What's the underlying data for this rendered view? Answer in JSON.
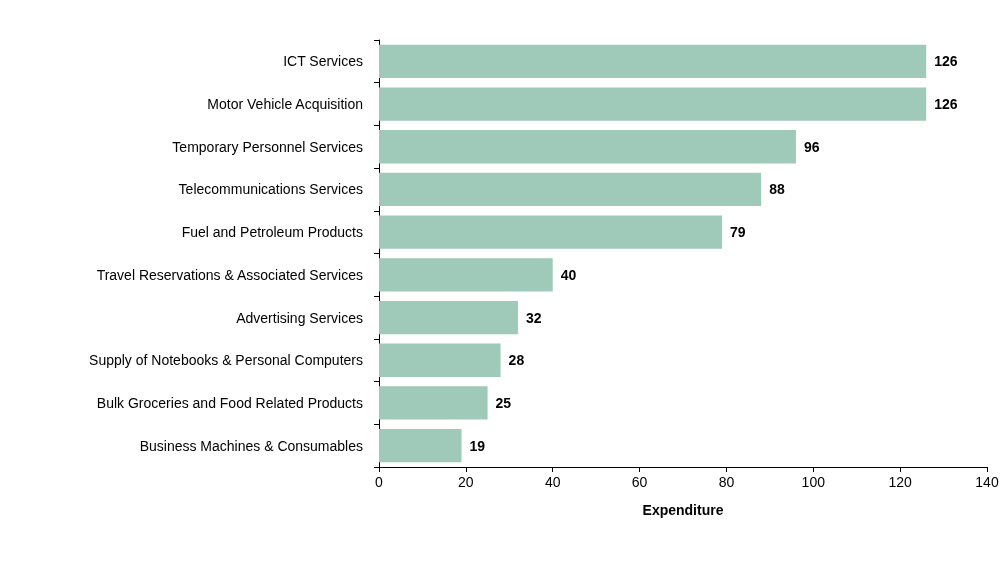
{
  "chart_data": {
    "type": "bar",
    "orientation": "horizontal",
    "xlabel": "Expenditure",
    "categories": [
      "ICT Services",
      "Motor Vehicle Acquisition",
      "Temporary Personnel Services",
      "Telecommunications Services",
      "Fuel and Petroleum Products",
      "Travel Reservations & Associated Services",
      "Advertising Services",
      "Supply of Notebooks & Personal Computers",
      "Bulk Groceries and Food Related Products",
      "Business Machines & Consumables"
    ],
    "values": [
      126,
      126,
      96,
      88,
      79,
      40,
      32,
      28,
      25,
      19
    ],
    "color": "#9fc9b9",
    "xlim": [
      0,
      140
    ],
    "xticks": [
      0,
      20,
      40,
      60,
      80,
      100,
      120,
      140
    ],
    "data_labels": true
  }
}
